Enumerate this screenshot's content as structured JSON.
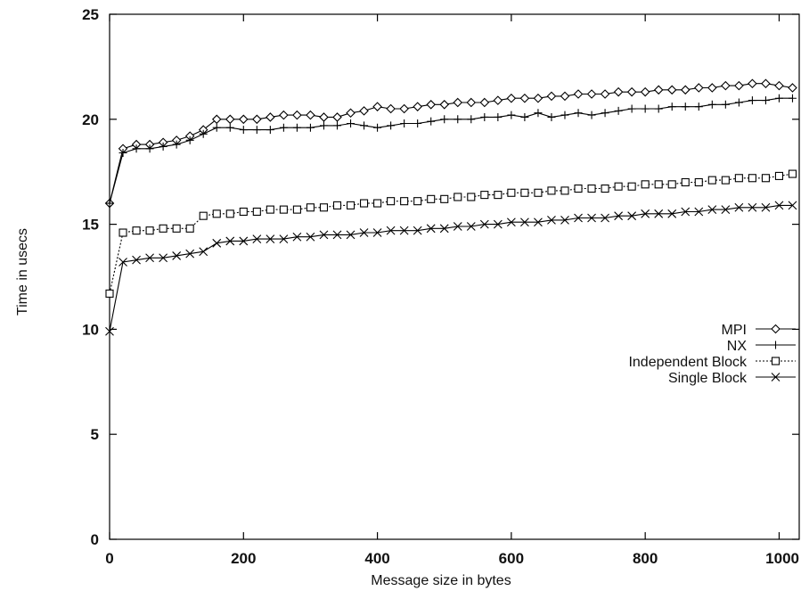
{
  "chart_data": {
    "type": "line",
    "title": "",
    "xlabel": "Message size in bytes",
    "ylabel": "Time in usecs",
    "xlim": [
      0,
      1030
    ],
    "ylim": [
      0,
      25
    ],
    "xticks": [
      0,
      200,
      400,
      600,
      800,
      1000
    ],
    "yticks": [
      0,
      5,
      10,
      15,
      20,
      25
    ],
    "xtick_labels": [
      "0",
      "200",
      "400",
      "600",
      "800",
      "1000"
    ],
    "ytick_labels": [
      "0",
      "5",
      "10",
      "15",
      "20",
      "25"
    ],
    "grid": false,
    "legend_position": "right",
    "x": [
      0,
      20,
      40,
      60,
      80,
      100,
      120,
      140,
      160,
      180,
      200,
      220,
      240,
      260,
      280,
      300,
      320,
      340,
      360,
      380,
      400,
      420,
      440,
      460,
      480,
      500,
      520,
      540,
      560,
      580,
      600,
      620,
      640,
      660,
      680,
      700,
      720,
      740,
      760,
      780,
      800,
      820,
      840,
      860,
      880,
      900,
      920,
      940,
      960,
      980,
      1000,
      1020
    ],
    "series": [
      {
        "name": "MPI",
        "marker": "diamond",
        "dash": "solid",
        "values": [
          16.0,
          18.6,
          18.8,
          18.8,
          18.9,
          19.0,
          19.2,
          19.5,
          20.0,
          20.0,
          20.0,
          20.0,
          20.1,
          20.2,
          20.2,
          20.2,
          20.1,
          20.1,
          20.3,
          20.4,
          20.6,
          20.5,
          20.5,
          20.6,
          20.7,
          20.7,
          20.8,
          20.8,
          20.8,
          20.9,
          21.0,
          21.0,
          21.0,
          21.1,
          21.1,
          21.2,
          21.2,
          21.2,
          21.3,
          21.3,
          21.3,
          21.4,
          21.4,
          21.4,
          21.5,
          21.5,
          21.6,
          21.6,
          21.7,
          21.7,
          21.6,
          21.5
        ]
      },
      {
        "name": "NX",
        "marker": "plus",
        "dash": "solid",
        "values": [
          16.0,
          18.4,
          18.6,
          18.6,
          18.7,
          18.8,
          19.0,
          19.3,
          19.6,
          19.6,
          19.5,
          19.5,
          19.5,
          19.6,
          19.6,
          19.6,
          19.7,
          19.7,
          19.8,
          19.7,
          19.6,
          19.7,
          19.8,
          19.8,
          19.9,
          20.0,
          20.0,
          20.0,
          20.1,
          20.1,
          20.2,
          20.1,
          20.3,
          20.1,
          20.2,
          20.3,
          20.2,
          20.3,
          20.4,
          20.5,
          20.5,
          20.5,
          20.6,
          20.6,
          20.6,
          20.7,
          20.7,
          20.8,
          20.9,
          20.9,
          21.0,
          21.0
        ]
      },
      {
        "name": "Independent Block",
        "marker": "square",
        "dash": "dashed",
        "values": [
          11.7,
          14.6,
          14.7,
          14.7,
          14.8,
          14.8,
          14.8,
          15.4,
          15.5,
          15.5,
          15.6,
          15.6,
          15.7,
          15.7,
          15.7,
          15.8,
          15.8,
          15.9,
          15.9,
          16.0,
          16.0,
          16.1,
          16.1,
          16.1,
          16.2,
          16.2,
          16.3,
          16.3,
          16.4,
          16.4,
          16.5,
          16.5,
          16.5,
          16.6,
          16.6,
          16.7,
          16.7,
          16.7,
          16.8,
          16.8,
          16.9,
          16.9,
          16.9,
          17.0,
          17.0,
          17.1,
          17.1,
          17.2,
          17.2,
          17.2,
          17.3,
          17.4
        ]
      },
      {
        "name": "Single Block",
        "marker": "cross",
        "dash": "solid",
        "values": [
          9.9,
          13.2,
          13.3,
          13.4,
          13.4,
          13.5,
          13.6,
          13.7,
          14.1,
          14.2,
          14.2,
          14.3,
          14.3,
          14.3,
          14.4,
          14.4,
          14.5,
          14.5,
          14.5,
          14.6,
          14.6,
          14.7,
          14.7,
          14.7,
          14.8,
          14.8,
          14.9,
          14.9,
          15.0,
          15.0,
          15.1,
          15.1,
          15.1,
          15.2,
          15.2,
          15.3,
          15.3,
          15.3,
          15.4,
          15.4,
          15.5,
          15.5,
          15.5,
          15.6,
          15.6,
          15.7,
          15.7,
          15.8,
          15.8,
          15.8,
          15.9,
          15.9
        ]
      }
    ]
  }
}
